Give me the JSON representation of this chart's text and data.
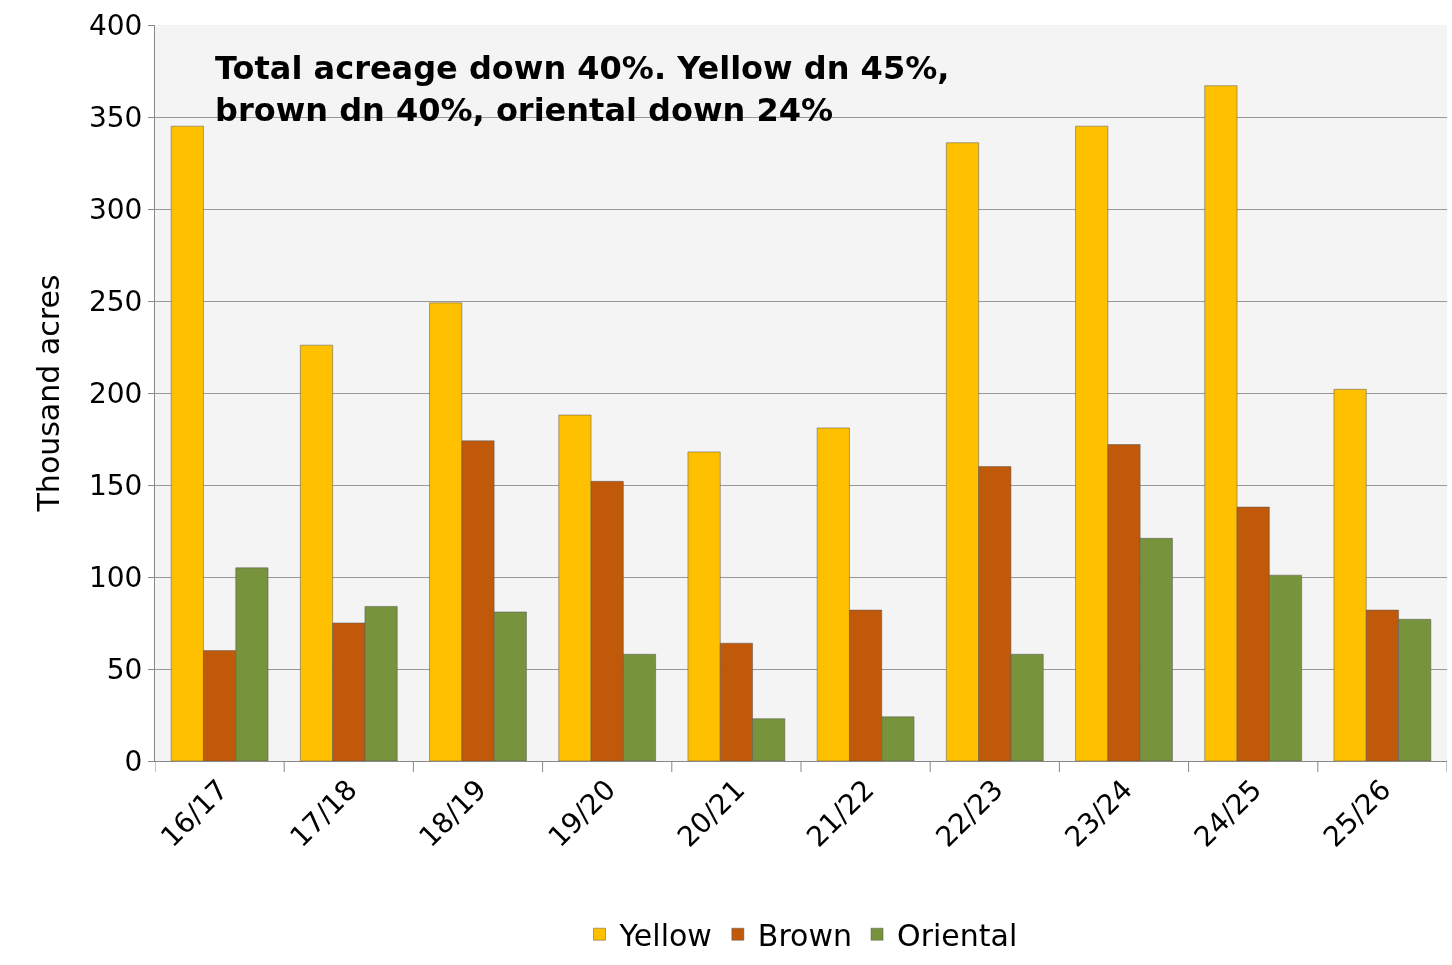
{
  "chart_data": {
    "type": "bar",
    "ylabel": "Thousand acres",
    "categories": [
      "16/17",
      "17/18",
      "18/19",
      "19/20",
      "20/21",
      "21/22",
      "22/23",
      "23/24",
      "24/25",
      "25/26"
    ],
    "series": [
      {
        "name": "Yellow",
        "color": "#ffc000",
        "values": [
          345,
          226,
          249,
          188,
          168,
          181,
          336,
          345,
          367,
          202
        ]
      },
      {
        "name": "Brown",
        "color": "#c05a0a",
        "values": [
          60,
          75,
          174,
          152,
          64,
          82,
          160,
          172,
          138,
          82
        ]
      },
      {
        "name": "Oriental",
        "color": "#77933c",
        "values": [
          105,
          84,
          81,
          58,
          23,
          24,
          58,
          121,
          101,
          77
        ]
      }
    ],
    "ylim": [
      0,
      400
    ],
    "yticks": [
      0,
      50,
      100,
      150,
      200,
      250,
      300,
      350,
      400
    ],
    "grid": "y",
    "legend": "bottom",
    "annotations": [
      "Total acreage down 40%. Yellow dn 45%, brown dn 40%, oriental down 24%"
    ]
  }
}
